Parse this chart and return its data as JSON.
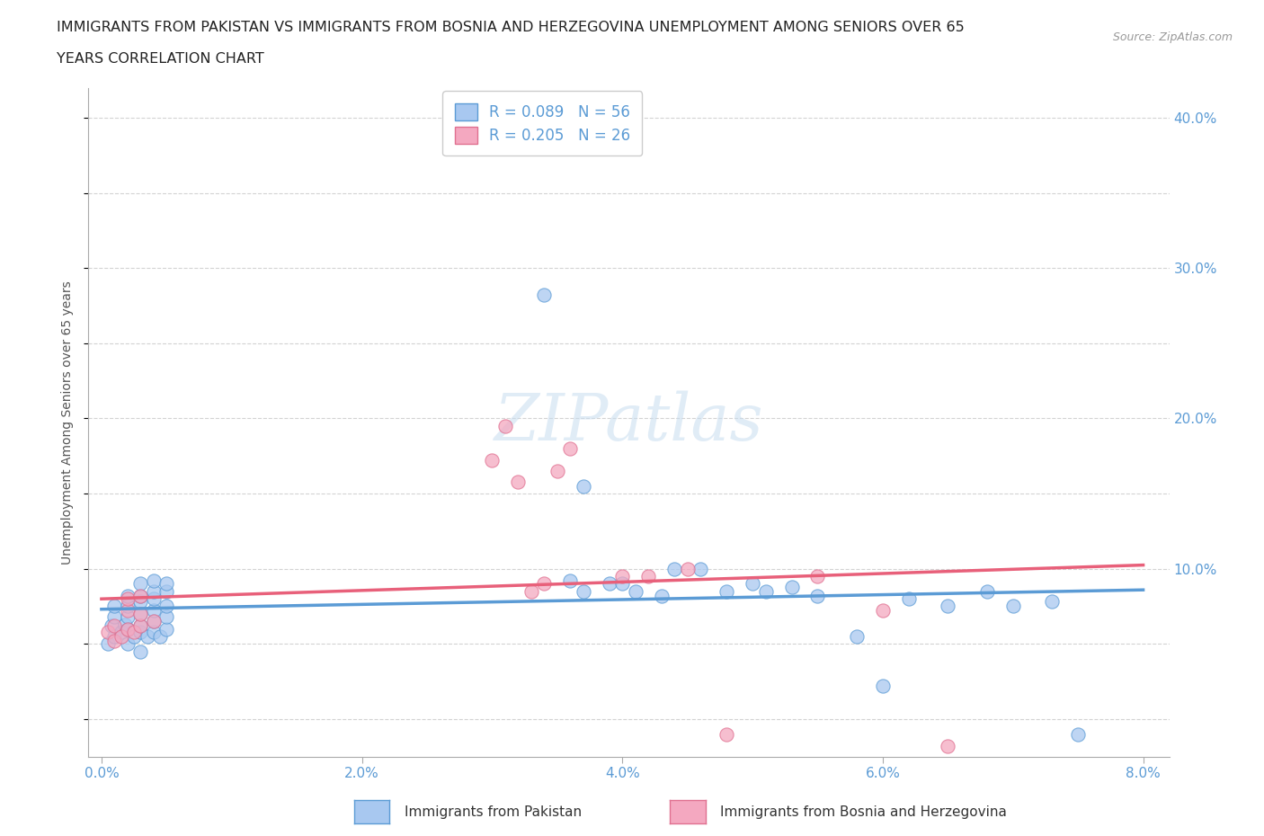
{
  "title_line1": "IMMIGRANTS FROM PAKISTAN VS IMMIGRANTS FROM BOSNIA AND HERZEGOVINA UNEMPLOYMENT AMONG SENIORS OVER 65",
  "title_line2": "YEARS CORRELATION CHART",
  "source_text": "Source: ZipAtlas.com",
  "ylabel": "Unemployment Among Seniors over 65 years",
  "xlim": [
    -0.001,
    0.082
  ],
  "ylim": [
    -0.025,
    0.42
  ],
  "xticks": [
    0.0,
    0.02,
    0.04,
    0.06,
    0.08
  ],
  "yticks": [
    0.0,
    0.1,
    0.2,
    0.3,
    0.4
  ],
  "xtick_labels": [
    "0.0%",
    "2.0%",
    "4.0%",
    "6.0%",
    "8.0%"
  ],
  "ytick_labels": [
    "",
    "10.0%",
    "20.0%",
    "30.0%",
    "40.0%"
  ],
  "pakistan_R": 0.089,
  "pakistan_N": 56,
  "bosnia_R": 0.205,
  "bosnia_N": 26,
  "pakistan_color": "#a8c8f0",
  "bosnia_color": "#f4a8c0",
  "pakistan_edge_color": "#5b9bd5",
  "bosnia_edge_color": "#e07090",
  "pakistan_line_color": "#5b9bd5",
  "bosnia_line_color": "#e8607a",
  "legend_label_pakistan": "Immigrants from Pakistan",
  "legend_label_bosnia": "Immigrants from Bosnia and Herzegovina",
  "watermark": "ZIPatlas",
  "background_color": "#ffffff",
  "grid_color": "#c8c8c8",
  "pakistan_x": [
    0.0005,
    0.0008,
    0.001,
    0.001,
    0.001,
    0.0015,
    0.0018,
    0.002,
    0.002,
    0.002,
    0.002,
    0.002,
    0.0025,
    0.003,
    0.003,
    0.003,
    0.003,
    0.003,
    0.003,
    0.003,
    0.0035,
    0.004,
    0.004,
    0.004,
    0.004,
    0.004,
    0.004,
    0.0045,
    0.005,
    0.005,
    0.005,
    0.005,
    0.005,
    0.034,
    0.036,
    0.037,
    0.037,
    0.039,
    0.04,
    0.041,
    0.043,
    0.044,
    0.046,
    0.048,
    0.05,
    0.051,
    0.053,
    0.055,
    0.058,
    0.06,
    0.062,
    0.065,
    0.068,
    0.07,
    0.073,
    0.075
  ],
  "pakistan_y": [
    0.05,
    0.062,
    0.055,
    0.068,
    0.075,
    0.058,
    0.063,
    0.05,
    0.06,
    0.068,
    0.075,
    0.082,
    0.055,
    0.045,
    0.058,
    0.062,
    0.07,
    0.078,
    0.082,
    0.09,
    0.055,
    0.058,
    0.065,
    0.072,
    0.08,
    0.085,
    0.092,
    0.055,
    0.06,
    0.068,
    0.075,
    0.085,
    0.09,
    0.282,
    0.092,
    0.085,
    0.155,
    0.09,
    0.09,
    0.085,
    0.082,
    0.1,
    0.1,
    0.085,
    0.09,
    0.085,
    0.088,
    0.082,
    0.055,
    0.022,
    0.08,
    0.075,
    0.085,
    0.075,
    0.078,
    -0.01
  ],
  "bosnia_x": [
    0.0005,
    0.001,
    0.001,
    0.0015,
    0.002,
    0.002,
    0.002,
    0.0025,
    0.003,
    0.003,
    0.003,
    0.004,
    0.03,
    0.031,
    0.032,
    0.033,
    0.034,
    0.035,
    0.036,
    0.04,
    0.042,
    0.045,
    0.048,
    0.055,
    0.06,
    0.065
  ],
  "bosnia_y": [
    0.058,
    0.052,
    0.062,
    0.055,
    0.06,
    0.072,
    0.08,
    0.058,
    0.062,
    0.07,
    0.082,
    0.065,
    0.172,
    0.195,
    0.158,
    0.085,
    0.09,
    0.165,
    0.18,
    0.095,
    0.095,
    0.1,
    -0.01,
    0.095,
    0.072,
    -0.018
  ]
}
